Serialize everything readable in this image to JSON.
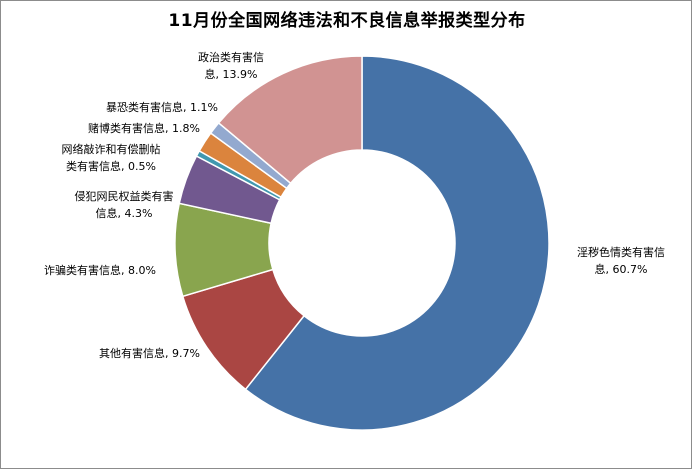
{
  "chart_data": {
    "type": "pie",
    "variant": "donut",
    "title": "11月份全国网络违法和不良信息举报类型分布",
    "slices": [
      {
        "label": "淫秽色情类有害信息",
        "value": 60.7,
        "display": "淫秽色情类有害信息, 60.7%",
        "color": "#4572A7"
      },
      {
        "label": "其他有害信息",
        "value": 9.7,
        "display": "其他有害信息, 9.7%",
        "color": "#AA4643"
      },
      {
        "label": "诈骗类有害信息",
        "value": 8.0,
        "display": "诈骗类有害信息, 8.0%",
        "color": "#89A54E"
      },
      {
        "label": "侵犯网民权益类有害信息",
        "value": 4.3,
        "display": "侵犯网民权益类有害信息, 4.3%",
        "color": "#71588F"
      },
      {
        "label": "网络敲诈和有偿删帖类有害信息",
        "value": 0.5,
        "display": "网络敲诈和有偿删帖类有害信息, 0.5%",
        "color": "#4198AF"
      },
      {
        "label": "赌博类有害信息",
        "value": 1.8,
        "display": "赌博类有害信息, 1.8%",
        "color": "#DB843D"
      },
      {
        "label": "暴恐类有害信息",
        "value": 1.1,
        "display": "暴恐类有害信息, 1.1%",
        "color": "#93A9CF"
      },
      {
        "label": "政治类有害信息",
        "value": 13.9,
        "display": "政治类有害信息, 13.9%",
        "color": "#D19392"
      }
    ],
    "label_lines": [
      [
        "淫秽色情类有害信",
        "息, 60.7%"
      ],
      [
        "其他有害信息, 9.7%"
      ],
      [
        "诈骗类有害信息, 8.0%"
      ],
      [
        "侵犯网民权益类有害",
        "信息, 4.3%"
      ],
      [
        "网络敲诈和有偿删帖",
        "类有害信息, 0.5%"
      ],
      [
        "赌博类有害信息, 1.8%"
      ],
      [
        "暴恐类有害信息, 1.1%"
      ],
      [
        "政治类有害信",
        "息, 13.9%"
      ]
    ],
    "start_angle_deg": 0,
    "direction": "clockwise",
    "legend": "none"
  }
}
